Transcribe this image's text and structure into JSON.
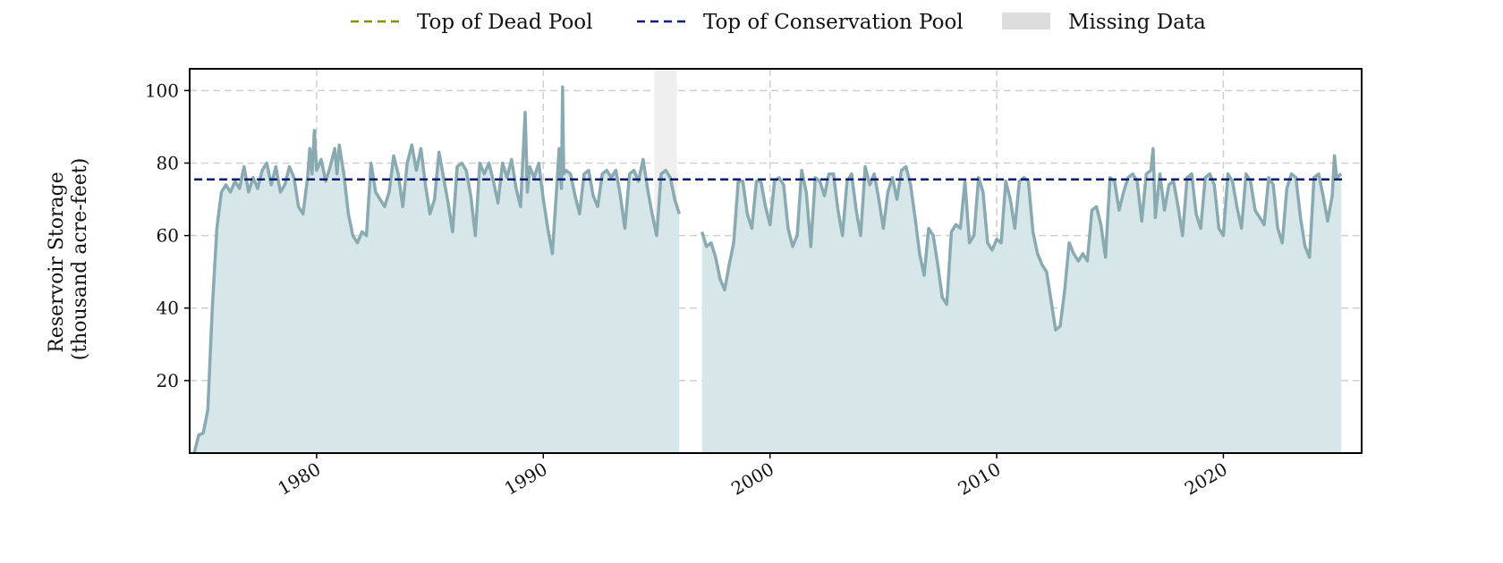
{
  "chart_data": {
    "type": "area",
    "title": "",
    "xlabel": "",
    "ylabel_lines": [
      "Reservoir Storage",
      "(thousand acre-feet)"
    ],
    "xlim": [
      1974.4,
      2026.1
    ],
    "ylim": [
      0,
      106
    ],
    "x_ticks": [
      1980,
      1990,
      2000,
      2010,
      2020
    ],
    "x_tick_labels": [
      "1980",
      "1990",
      "2000",
      "2010",
      "2020"
    ],
    "y_ticks": [
      20,
      40,
      60,
      80,
      100
    ],
    "y_tick_labels": [
      "20",
      "40",
      "60",
      "80",
      "100"
    ],
    "grid": true,
    "legend_position": "top-center",
    "legend": [
      {
        "label": "Top of Dead Pool",
        "style": "dashed-line",
        "color": "#8b8b00"
      },
      {
        "label": "Top of Conservation Pool",
        "style": "dashed-line",
        "color": "#0a1a7a"
      },
      {
        "label": "Missing Data",
        "style": "patch",
        "color": "#dddddd"
      }
    ],
    "reference_lines": [
      {
        "name": "Top of Dead Pool",
        "y": 0,
        "color": "#8b8b00"
      },
      {
        "name": "Top of Conservation Pool",
        "y": 75.5,
        "color": "#0a1a7a"
      }
    ],
    "missing_ranges": [
      [
        1994.9,
        1995.9
      ]
    ],
    "colors": {
      "line": "#8aaab2",
      "fill": "#d6e6e9"
    },
    "series": [
      {
        "values": [
          [
            1974.6,
            0
          ],
          [
            1974.8,
            5
          ],
          [
            1975.0,
            5.5
          ],
          [
            1975.2,
            12
          ],
          [
            1975.4,
            40
          ],
          [
            1975.6,
            62
          ],
          [
            1975.8,
            72
          ],
          [
            1976.0,
            74
          ],
          [
            1976.2,
            72
          ],
          [
            1976.4,
            75
          ],
          [
            1976.6,
            73
          ],
          [
            1976.8,
            79
          ],
          [
            1977.0,
            72
          ],
          [
            1977.2,
            76
          ],
          [
            1977.4,
            73
          ],
          [
            1977.6,
            78
          ],
          [
            1977.8,
            80
          ],
          [
            1978.0,
            74
          ],
          [
            1978.2,
            79
          ],
          [
            1978.4,
            72
          ],
          [
            1978.6,
            74
          ],
          [
            1978.8,
            79
          ],
          [
            1979.0,
            76
          ],
          [
            1979.2,
            68
          ],
          [
            1979.4,
            66
          ],
          [
            1979.6,
            76
          ],
          [
            1979.7,
            84
          ],
          [
            1979.8,
            77
          ],
          [
            1979.9,
            89
          ],
          [
            1980.0,
            78
          ],
          [
            1980.2,
            81
          ],
          [
            1980.4,
            75
          ],
          [
            1980.6,
            79
          ],
          [
            1980.8,
            84
          ],
          [
            1980.9,
            77
          ],
          [
            1981.0,
            85
          ],
          [
            1981.2,
            77
          ],
          [
            1981.4,
            66
          ],
          [
            1981.6,
            60
          ],
          [
            1981.8,
            58
          ],
          [
            1982.0,
            61
          ],
          [
            1982.2,
            60
          ],
          [
            1982.4,
            80
          ],
          [
            1982.6,
            72
          ],
          [
            1982.8,
            70
          ],
          [
            1983.0,
            68
          ],
          [
            1983.2,
            72
          ],
          [
            1983.4,
            82
          ],
          [
            1983.6,
            77
          ],
          [
            1983.8,
            68
          ],
          [
            1984.0,
            80
          ],
          [
            1984.2,
            85
          ],
          [
            1984.4,
            78
          ],
          [
            1984.6,
            84
          ],
          [
            1984.8,
            74
          ],
          [
            1985.0,
            66
          ],
          [
            1985.2,
            70
          ],
          [
            1985.4,
            83
          ],
          [
            1985.6,
            76
          ],
          [
            1985.8,
            69
          ],
          [
            1986.0,
            61
          ],
          [
            1986.2,
            79
          ],
          [
            1986.4,
            80
          ],
          [
            1986.6,
            78
          ],
          [
            1986.8,
            71
          ],
          [
            1987.0,
            60
          ],
          [
            1987.2,
            80
          ],
          [
            1987.4,
            77
          ],
          [
            1987.6,
            80
          ],
          [
            1987.8,
            75
          ],
          [
            1988.0,
            69
          ],
          [
            1988.2,
            80
          ],
          [
            1988.4,
            76
          ],
          [
            1988.6,
            81
          ],
          [
            1988.8,
            73
          ],
          [
            1989.0,
            68
          ],
          [
            1989.2,
            94
          ],
          [
            1989.3,
            72
          ],
          [
            1989.4,
            79
          ],
          [
            1989.6,
            76
          ],
          [
            1989.8,
            80
          ],
          [
            1990.0,
            70
          ],
          [
            1990.2,
            62
          ],
          [
            1990.4,
            55
          ],
          [
            1990.6,
            74
          ],
          [
            1990.7,
            84
          ],
          [
            1990.8,
            73
          ],
          [
            1990.85,
            101
          ],
          [
            1990.9,
            77
          ],
          [
            1991.0,
            78
          ],
          [
            1991.2,
            77
          ],
          [
            1991.4,
            71
          ],
          [
            1991.6,
            66
          ],
          [
            1991.8,
            77
          ],
          [
            1992.0,
            78
          ],
          [
            1992.2,
            71
          ],
          [
            1992.4,
            68
          ],
          [
            1992.6,
            77
          ],
          [
            1992.8,
            78
          ],
          [
            1993.0,
            76
          ],
          [
            1993.2,
            78
          ],
          [
            1993.4,
            71
          ],
          [
            1993.6,
            62
          ],
          [
            1993.8,
            77
          ],
          [
            1994.0,
            78
          ],
          [
            1994.2,
            75
          ],
          [
            1994.4,
            81
          ],
          [
            1994.6,
            73
          ],
          [
            1994.8,
            66
          ],
          [
            1995.0,
            60
          ],
          [
            1995.2,
            77
          ],
          [
            1995.4,
            78
          ],
          [
            1995.6,
            76
          ],
          [
            1995.8,
            70
          ],
          [
            1996.0,
            66
          ],
          null,
          [
            1997.0,
            61
          ],
          [
            1997.2,
            57
          ],
          [
            1997.4,
            58
          ],
          [
            1997.6,
            54
          ],
          [
            1997.8,
            48
          ],
          [
            1998.0,
            45
          ],
          [
            1998.2,
            52
          ],
          [
            1998.4,
            58
          ],
          [
            1998.6,
            75
          ],
          [
            1998.8,
            75
          ],
          [
            1999.0,
            66
          ],
          [
            1999.2,
            62
          ],
          [
            1999.4,
            75
          ],
          [
            1999.6,
            75
          ],
          [
            1999.8,
            68
          ],
          [
            2000.0,
            63
          ],
          [
            2000.2,
            75
          ],
          [
            2000.4,
            76
          ],
          [
            2000.6,
            74
          ],
          [
            2000.8,
            62
          ],
          [
            2001.0,
            57
          ],
          [
            2001.2,
            60
          ],
          [
            2001.4,
            78
          ],
          [
            2001.6,
            72
          ],
          [
            2001.8,
            57
          ],
          [
            2002.0,
            76
          ],
          [
            2002.2,
            75
          ],
          [
            2002.4,
            71
          ],
          [
            2002.6,
            77
          ],
          [
            2002.8,
            77
          ],
          [
            2003.0,
            67
          ],
          [
            2003.2,
            60
          ],
          [
            2003.4,
            75
          ],
          [
            2003.6,
            77
          ],
          [
            2003.8,
            67
          ],
          [
            2004.0,
            60
          ],
          [
            2004.2,
            79
          ],
          [
            2004.4,
            74
          ],
          [
            2004.6,
            77
          ],
          [
            2004.8,
            70
          ],
          [
            2005.0,
            62
          ],
          [
            2005.2,
            72
          ],
          [
            2005.4,
            76
          ],
          [
            2005.6,
            70
          ],
          [
            2005.8,
            78
          ],
          [
            2006.0,
            79
          ],
          [
            2006.2,
            74
          ],
          [
            2006.4,
            65
          ],
          [
            2006.6,
            55
          ],
          [
            2006.8,
            49
          ],
          [
            2007.0,
            62
          ],
          [
            2007.2,
            60
          ],
          [
            2007.4,
            52
          ],
          [
            2007.6,
            43
          ],
          [
            2007.8,
            41
          ],
          [
            2008.0,
            61
          ],
          [
            2008.2,
            63
          ],
          [
            2008.4,
            62
          ],
          [
            2008.6,
            75
          ],
          [
            2008.8,
            58
          ],
          [
            2009.0,
            60
          ],
          [
            2009.2,
            76
          ],
          [
            2009.4,
            72
          ],
          [
            2009.6,
            58
          ],
          [
            2009.8,
            56
          ],
          [
            2010.0,
            59
          ],
          [
            2010.2,
            58
          ],
          [
            2010.4,
            75
          ],
          [
            2010.6,
            70
          ],
          [
            2010.8,
            62
          ],
          [
            2011.0,
            75
          ],
          [
            2011.2,
            76
          ],
          [
            2011.4,
            75
          ],
          [
            2011.6,
            61
          ],
          [
            2011.8,
            55
          ],
          [
            2012.0,
            52
          ],
          [
            2012.2,
            50
          ],
          [
            2012.4,
            42
          ],
          [
            2012.6,
            34
          ],
          [
            2012.8,
            35
          ],
          [
            2013.0,
            45
          ],
          [
            2013.2,
            58
          ],
          [
            2013.4,
            55
          ],
          [
            2013.6,
            53
          ],
          [
            2013.8,
            55
          ],
          [
            2014.0,
            53
          ],
          [
            2014.2,
            67
          ],
          [
            2014.4,
            68
          ],
          [
            2014.6,
            63
          ],
          [
            2014.8,
            54
          ],
          [
            2015.0,
            76
          ],
          [
            2015.2,
            75
          ],
          [
            2015.4,
            67
          ],
          [
            2015.6,
            72
          ],
          [
            2015.8,
            76
          ],
          [
            2016.0,
            77
          ],
          [
            2016.2,
            75
          ],
          [
            2016.4,
            64
          ],
          [
            2016.6,
            77
          ],
          [
            2016.8,
            78
          ],
          [
            2016.9,
            84
          ],
          [
            2017.0,
            65
          ],
          [
            2017.2,
            77
          ],
          [
            2017.4,
            67
          ],
          [
            2017.6,
            74
          ],
          [
            2017.8,
            75
          ],
          [
            2018.0,
            68
          ],
          [
            2018.2,
            60
          ],
          [
            2018.4,
            76
          ],
          [
            2018.6,
            77
          ],
          [
            2018.8,
            66
          ],
          [
            2019.0,
            62
          ],
          [
            2019.2,
            76
          ],
          [
            2019.4,
            77
          ],
          [
            2019.6,
            74
          ],
          [
            2019.8,
            62
          ],
          [
            2020.0,
            60
          ],
          [
            2020.2,
            77
          ],
          [
            2020.4,
            75
          ],
          [
            2020.6,
            68
          ],
          [
            2020.8,
            62
          ],
          [
            2021.0,
            77
          ],
          [
            2021.2,
            75
          ],
          [
            2021.4,
            67
          ],
          [
            2021.6,
            65
          ],
          [
            2021.8,
            63
          ],
          [
            2022.0,
            76
          ],
          [
            2022.2,
            74
          ],
          [
            2022.4,
            62
          ],
          [
            2022.6,
            58
          ],
          [
            2022.8,
            73
          ],
          [
            2023.0,
            77
          ],
          [
            2023.2,
            76
          ],
          [
            2023.4,
            65
          ],
          [
            2023.6,
            57
          ],
          [
            2023.8,
            54
          ],
          [
            2024.0,
            76
          ],
          [
            2024.2,
            77
          ],
          [
            2024.4,
            71
          ],
          [
            2024.6,
            64
          ],
          [
            2024.8,
            71
          ],
          [
            2024.9,
            82
          ],
          [
            2025.0,
            76
          ],
          [
            2025.2,
            77
          ]
        ]
      }
    ]
  }
}
